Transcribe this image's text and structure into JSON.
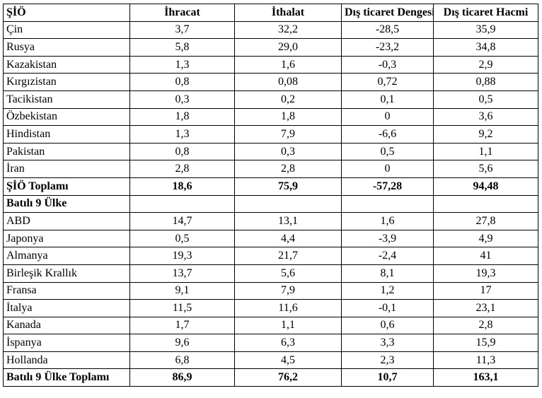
{
  "headers": [
    "ŞİÖ",
    "İhracat",
    "İthalat",
    "Dış ticaret Dengesi",
    "Dış ticaret Hacmi"
  ],
  "rows": [
    {
      "cells": [
        "Çin",
        "3,7",
        "32,2",
        "-28,5",
        "35,9"
      ],
      "bold": false
    },
    {
      "cells": [
        "Rusya",
        "5,8",
        "29,0",
        "-23,2",
        "34,8"
      ],
      "bold": false
    },
    {
      "cells": [
        "Kazakistan",
        "1,3",
        "1,6",
        "-0,3",
        "2,9"
      ],
      "bold": false
    },
    {
      "cells": [
        "Kırgızistan",
        "0,8",
        "0,08",
        "0,72",
        "0,88"
      ],
      "bold": false
    },
    {
      "cells": [
        "Tacikistan",
        "0,3",
        "0,2",
        "0,1",
        "0,5"
      ],
      "bold": false
    },
    {
      "cells": [
        "Özbekistan",
        "1,8",
        "1,8",
        "0",
        "3,6"
      ],
      "bold": false
    },
    {
      "cells": [
        "Hindistan",
        "1,3",
        "7,9",
        "-6,6",
        "9,2"
      ],
      "bold": false
    },
    {
      "cells": [
        "Pakistan",
        "0,8",
        "0,3",
        "0,5",
        "1,1"
      ],
      "bold": false
    },
    {
      "cells": [
        "İran",
        "2,8",
        "2,8",
        "0",
        "5,6"
      ],
      "bold": false
    },
    {
      "cells": [
        "ŞİÖ Toplamı",
        "18,6",
        "75,9",
        "-57,28",
        "94,48"
      ],
      "bold": true
    },
    {
      "cells": [
        "Batılı 9 Ülke",
        "",
        "",
        "",
        ""
      ],
      "bold": true
    },
    {
      "cells": [
        "ABD",
        "14,7",
        "13,1",
        "1,6",
        "27,8"
      ],
      "bold": false
    },
    {
      "cells": [
        "Japonya",
        "0,5",
        "4,4",
        "-3,9",
        "4,9"
      ],
      "bold": false
    },
    {
      "cells": [
        "Almanya",
        "19,3",
        "21,7",
        "-2,4",
        "41"
      ],
      "bold": false
    },
    {
      "cells": [
        "Birleşik Krallık",
        "13,7",
        "5,6",
        "8,1",
        "19,3"
      ],
      "bold": false
    },
    {
      "cells": [
        "Fransa",
        "9,1",
        "7,9",
        "1,2",
        "17"
      ],
      "bold": false
    },
    {
      "cells": [
        "İtalya",
        "11,5",
        "11,6",
        "-0,1",
        "23,1"
      ],
      "bold": false
    },
    {
      "cells": [
        "Kanada",
        "1,7",
        "1,1",
        "0,6",
        "2,8"
      ],
      "bold": false
    },
    {
      "cells": [
        "İspanya",
        "9,6",
        "6,3",
        "3,3",
        "15,9"
      ],
      "bold": false
    },
    {
      "cells": [
        "Hollanda",
        "6,8",
        "4,5",
        "2,3",
        "11,3"
      ],
      "bold": false
    },
    {
      "cells": [
        "Batılı 9 Ülke Toplamı",
        "86,9",
        "76,2",
        "10,7",
        "163,1"
      ],
      "bold": true
    }
  ]
}
